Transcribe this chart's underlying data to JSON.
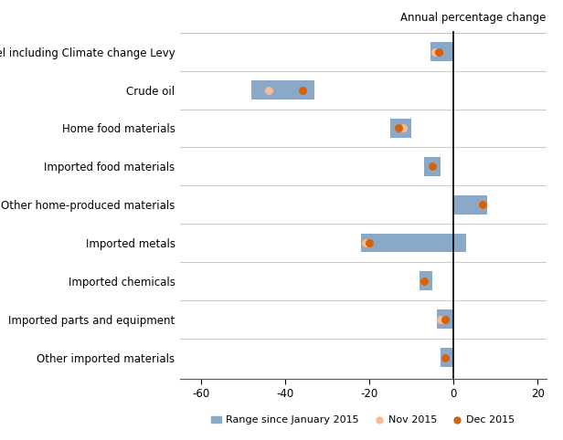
{
  "categories": [
    "Fuel including Climate change Levy",
    "Crude oil",
    "Home food materials",
    "Imported food materials",
    "Other home-produced materials",
    "Imported metals",
    "Imported chemicals",
    "Imported parts and equipment",
    "Other imported materials"
  ],
  "bar_min": [
    -5.5,
    -48,
    -15,
    -7,
    0,
    -22,
    -8,
    -4,
    -3
  ],
  "bar_max": [
    0,
    -33,
    -10,
    -3,
    8,
    3,
    -5,
    0,
    0
  ],
  "nov_2015": [
    -4.5,
    -44,
    -12,
    -5,
    7,
    -21,
    -7,
    -3,
    -2
  ],
  "dec_2015": [
    -3.5,
    -36,
    -13,
    -5,
    7,
    -20,
    -7,
    -2,
    -2
  ],
  "bar_color": "#8aa8c8",
  "nov_color": "#f5bc96",
  "dec_color": "#d4620a",
  "title": "Annual percentage change",
  "xlim": [
    -65,
    22
  ],
  "xticks": [
    -60,
    -40,
    -20,
    0,
    20
  ],
  "legend_labels": [
    "Range since January 2015",
    "Nov 2015",
    "Dec 2015"
  ],
  "bar_height": 0.5,
  "figsize": [
    6.16,
    4.82
  ],
  "dpi": 100
}
